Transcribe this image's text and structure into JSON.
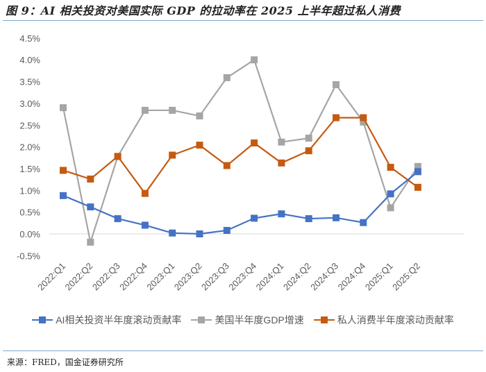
{
  "title": "图 9：AI 相关投资对美国实际 GDP 的拉动率在 2025 上半年超过私人消费",
  "source": "来源：FRED，国金证券研究所",
  "colors": {
    "ai": "#4472C4",
    "gdp": "#A5A5A5",
    "consumption": "#C55A11",
    "axis_text": "#595959",
    "zero_line": "#D9D9D9",
    "rule": "#7FA6CC"
  },
  "legend": [
    {
      "label": "AI相关投资半年度滚动贡献率",
      "color": "#4472C4"
    },
    {
      "label": "美国半年度GDP增速",
      "color": "#A5A5A5"
    },
    {
      "label": "私人消费半年度滚动贡献率",
      "color": "#C55A11"
    }
  ],
  "chart_data": {
    "type": "line",
    "title": "AI 相关投资对美国实际 GDP 的拉动率在 2025 上半年超过私人消费",
    "xlabel": "",
    "ylabel": "",
    "ylim": [
      -0.5,
      4.5
    ],
    "yticks": [
      "-0.5%",
      "0.0%",
      "0.5%",
      "1.0%",
      "1.5%",
      "2.0%",
      "2.5%",
      "3.0%",
      "3.5%",
      "4.0%",
      "4.5%"
    ],
    "grid": false,
    "legend_position": "bottom",
    "categories": [
      "2022:Q1",
      "2022:Q2",
      "2022:Q3",
      "2022:Q4",
      "2023:Q1",
      "2023:Q2",
      "2023:Q3",
      "2023:Q4",
      "2024:Q1",
      "2024:Q2",
      "2024:Q3",
      "2024:Q4",
      "2025:Q1",
      "2025:Q2"
    ],
    "series": [
      {
        "name": "AI相关投资半年度滚动贡献率",
        "color": "#4472C4",
        "values": [
          0.88,
          0.62,
          0.35,
          0.2,
          0.02,
          0.0,
          0.08,
          0.36,
          0.46,
          0.35,
          0.37,
          0.26,
          0.92,
          1.43
        ]
      },
      {
        "name": "美国半年度GDP增速",
        "color": "#A5A5A5",
        "values": [
          2.9,
          -0.19,
          1.78,
          2.84,
          2.84,
          2.71,
          3.59,
          4.0,
          2.11,
          2.2,
          3.43,
          2.57,
          0.6,
          1.55
        ]
      },
      {
        "name": "私人消费半年度滚动贡献率",
        "color": "#C55A11",
        "values": [
          1.46,
          1.26,
          1.78,
          0.93,
          1.81,
          2.04,
          1.57,
          2.09,
          1.63,
          1.91,
          2.67,
          2.67,
          1.53,
          1.07
        ]
      }
    ]
  }
}
